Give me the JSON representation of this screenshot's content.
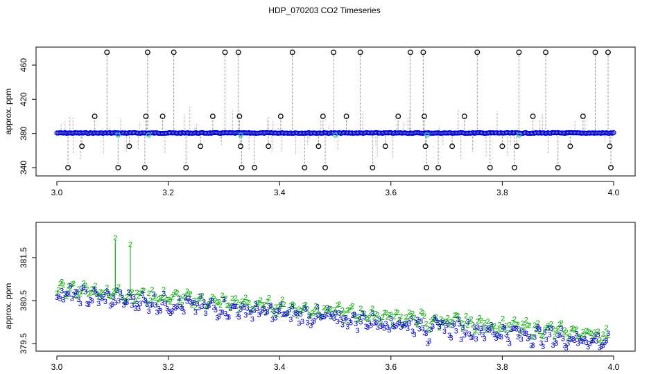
{
  "chart_data": [
    {
      "type": "scatter",
      "title": "HDP_070203  CO2 Timeseries",
      "xlabel": "",
      "ylabel": "approx. ppm",
      "xlim": [
        3.0,
        4.0
      ],
      "ylim": [
        337,
        477
      ],
      "x_ticks": [
        "3.0",
        "3.2",
        "3.4",
        "3.6",
        "3.8",
        "4.0"
      ],
      "y_ticks": [
        "340",
        "380",
        "420",
        "460"
      ],
      "colors": {
        "baseline": "#0000cc",
        "outlier": "#000000",
        "spike_line": "#888888",
        "highlight": "#33cccc",
        "green": "#00aa00"
      },
      "series": [
        {
          "values_note": "",
          "baseline_ppm": 380.5,
          "outliers_x": [
            3.02,
            3.045,
            3.068,
            3.09,
            3.11,
            3.13,
            3.158,
            3.16,
            3.163,
            3.19,
            3.21,
            3.232,
            3.258,
            3.28,
            3.302,
            3.326,
            3.328,
            3.33,
            3.332,
            3.355,
            3.38,
            3.402,
            3.423,
            3.445,
            3.47,
            3.478,
            3.482,
            3.497,
            3.52,
            3.545,
            3.567,
            3.59,
            3.613,
            3.635,
            3.658,
            3.66,
            3.662,
            3.664,
            3.685,
            3.71,
            3.732,
            3.755,
            3.778,
            3.8,
            3.822,
            3.826,
            3.83,
            3.855,
            3.878,
            3.9,
            3.922,
            3.945,
            3.967,
            3.99,
            3.993,
            3.995
          ],
          "outliers_y": [
            340,
            365,
            400,
            475,
            340,
            365,
            340,
            400,
            475,
            400,
            475,
            340,
            365,
            400,
            475,
            475,
            400,
            365,
            340,
            340,
            365,
            400,
            475,
            340,
            365,
            400,
            340,
            475,
            400,
            475,
            340,
            365,
            400,
            475,
            475,
            400,
            365,
            340,
            340,
            365,
            400,
            475,
            340,
            365,
            340,
            365,
            475,
            400,
            475,
            340,
            365,
            400,
            475,
            475,
            365,
            340
          ]
        }
      ]
    },
    {
      "type": "scatter",
      "title": "",
      "xlabel": "",
      "ylabel": "approx. ppm",
      "xlim": [
        3.0,
        4.0
      ],
      "ylim": [
        379.3,
        382.0
      ],
      "x_ticks": [
        "3.0",
        "3.2",
        "3.4",
        "3.6",
        "3.8",
        "4.0"
      ],
      "y_ticks": [
        "379.5",
        "380.5",
        "381.5"
      ],
      "series": [
        {
          "label": "2",
          "color": "#00aa00",
          "trend_start": 380.8,
          "trend_end": 379.7,
          "spikes_x": [
            3.105,
            3.132
          ],
          "spikes_y": [
            381.9,
            381.75
          ]
        },
        {
          "label": "3",
          "color": "#0000cc",
          "trend_start": 380.65,
          "trend_end": 379.55
        }
      ]
    }
  ]
}
